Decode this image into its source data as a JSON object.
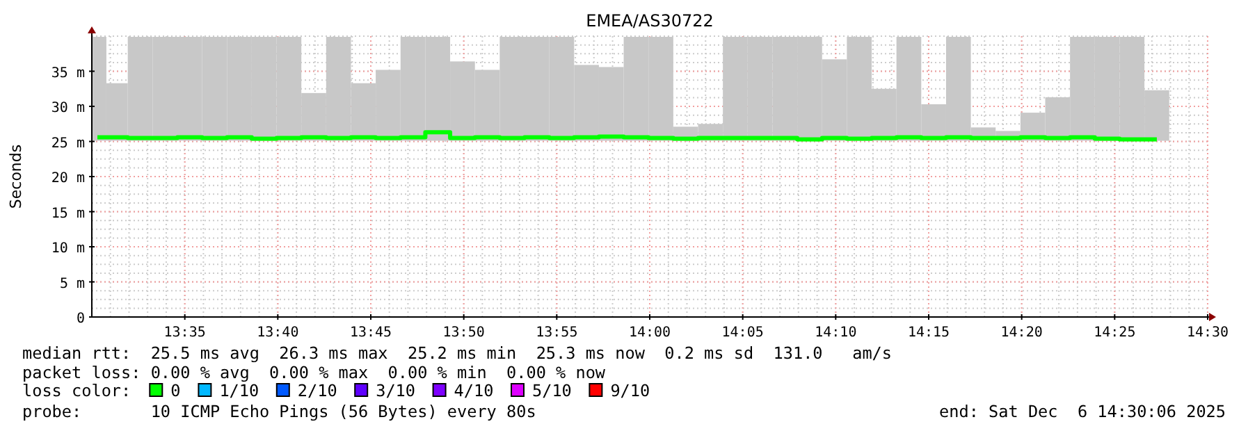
{
  "chart_data": {
    "type": "bar",
    "title": "EMEA/AS30722",
    "ylabel": "Seconds",
    "x": [
      "2025-12-06T13:30:18",
      "2025-12-06T13:31:16",
      "2025-12-06T13:32:36",
      "2025-12-06T13:33:56",
      "2025-12-06T13:35:16",
      "2025-12-06T13:36:36",
      "2025-12-06T13:37:56",
      "2025-12-06T13:39:16",
      "2025-12-06T13:40:36",
      "2025-12-06T13:41:56",
      "2025-12-06T13:43:16",
      "2025-12-06T13:44:36",
      "2025-12-06T13:45:56",
      "2025-12-06T13:47:16",
      "2025-12-06T13:48:36",
      "2025-12-06T13:49:56",
      "2025-12-06T13:51:16",
      "2025-12-06T13:52:36",
      "2025-12-06T13:53:56",
      "2025-12-06T13:55:16",
      "2025-12-06T13:56:36",
      "2025-12-06T13:57:56",
      "2025-12-06T13:59:16",
      "2025-12-06T14:00:36",
      "2025-12-06T14:01:56",
      "2025-12-06T14:03:16",
      "2025-12-06T14:04:36",
      "2025-12-06T14:05:56",
      "2025-12-06T14:07:16",
      "2025-12-06T14:08:36",
      "2025-12-06T14:09:56",
      "2025-12-06T14:11:16",
      "2025-12-06T14:12:36",
      "2025-12-06T14:13:56",
      "2025-12-06T14:15:16",
      "2025-12-06T14:16:36",
      "2025-12-06T14:17:56",
      "2025-12-06T14:19:16",
      "2025-12-06T14:20:36",
      "2025-12-06T14:21:56",
      "2025-12-06T14:23:16",
      "2025-12-06T14:24:36",
      "2025-12-06T14:25:56",
      "2025-12-06T14:27:16"
    ],
    "series": [
      {
        "color": "#c8c8c8",
        "base": [
          25.1,
          25.1,
          25.1,
          25.1,
          25.1,
          25.1,
          25.1,
          25.1,
          25.1,
          25.1,
          25.1,
          25.1,
          25.1,
          25.1,
          25.1,
          25.1,
          25.1,
          25.1,
          25.1,
          25.1,
          25.1,
          25.1,
          25.1,
          25.1,
          25.1,
          25.1,
          25.1,
          25.1,
          25.1,
          25.1,
          25.1,
          25.1,
          25.1,
          25.1,
          25.1,
          25.1,
          25.1,
          25.1,
          25.1,
          25.1,
          25.1,
          25.1,
          25.1,
          25.1
        ],
        "values": [
          14.8,
          8.2,
          14.8,
          14.8,
          14.8,
          14.8,
          14.8,
          14.8,
          14.8,
          6.8,
          14.8,
          8.2,
          10.1,
          14.8,
          14.8,
          11.3,
          10.1,
          14.8,
          14.8,
          14.8,
          10.8,
          10.5,
          14.8,
          14.8,
          2.0,
          2.4,
          14.8,
          14.8,
          14.8,
          14.8,
          11.6,
          14.8,
          7.4,
          14.8,
          5.2,
          14.8,
          1.9,
          1.4,
          4.0,
          6.2,
          14.8,
          14.8,
          14.8,
          7.2
        ]
      },
      {
        "type": "step",
        "name": "0",
        "color": "#00ff00",
        "values": [
          25.6,
          25.6,
          25.5,
          25.5,
          25.6,
          25.5,
          25.6,
          25.4,
          25.5,
          25.6,
          25.5,
          25.6,
          25.5,
          25.6,
          26.3,
          25.5,
          25.6,
          25.5,
          25.6,
          25.5,
          25.6,
          25.7,
          25.6,
          25.5,
          25.4,
          25.5,
          25.5,
          25.5,
          25.5,
          25.3,
          25.5,
          25.4,
          25.5,
          25.6,
          25.5,
          25.6,
          25.5,
          25.5,
          25.6,
          25.5,
          25.6,
          25.4,
          25.3,
          25.3
        ]
      },
      {
        "type": "step",
        "name": "1/10",
        "color": "#00b8ff",
        "values": [
          null,
          null,
          null,
          null,
          null,
          null,
          null,
          null,
          null,
          null,
          null,
          null,
          null,
          null,
          null,
          null,
          null,
          null,
          null,
          null,
          null,
          null,
          null,
          null,
          null,
          null,
          null,
          null,
          null,
          null,
          null,
          null,
          null,
          null,
          null,
          null,
          null,
          null,
          null,
          null,
          null,
          null,
          null,
          null
        ]
      },
      {
        "type": "step",
        "name": "2/10",
        "color": "#0059ff",
        "values": [
          null,
          null,
          null,
          null,
          null,
          null,
          null,
          null,
          null,
          null,
          null,
          null,
          null,
          null,
          null,
          null,
          null,
          null,
          null,
          null,
          null,
          null,
          null,
          null,
          null,
          null,
          null,
          null,
          null,
          null,
          null,
          null,
          null,
          null,
          null,
          null,
          null,
          null,
          null,
          null,
          null,
          null,
          null,
          null
        ]
      },
      {
        "type": "step",
        "name": "3/10",
        "color": "#5e00ff",
        "values": [
          null,
          null,
          null,
          null,
          null,
          null,
          null,
          null,
          null,
          null,
          null,
          null,
          null,
          null,
          null,
          null,
          null,
          null,
          null,
          null,
          null,
          null,
          null,
          null,
          null,
          null,
          null,
          null,
          null,
          null,
          null,
          null,
          null,
          null,
          null,
          null,
          null,
          null,
          null,
          null,
          null,
          null,
          null,
          null
        ]
      },
      {
        "type": "step",
        "name": "4/10",
        "color": "#7e00ff",
        "values": [
          null,
          null,
          null,
          null,
          null,
          null,
          null,
          null,
          null,
          null,
          null,
          null,
          null,
          null,
          null,
          null,
          null,
          null,
          null,
          null,
          null,
          null,
          null,
          null,
          null,
          null,
          null,
          null,
          null,
          null,
          null,
          null,
          null,
          null,
          null,
          null,
          null,
          null,
          null,
          null,
          null,
          null,
          null,
          null
        ]
      },
      {
        "type": "step",
        "name": "5/10",
        "color": "#dd00ff",
        "values": [
          null,
          null,
          null,
          null,
          null,
          null,
          null,
          null,
          null,
          null,
          null,
          null,
          null,
          null,
          null,
          null,
          null,
          null,
          null,
          null,
          null,
          null,
          null,
          null,
          null,
          null,
          null,
          null,
          null,
          null,
          null,
          null,
          null,
          null,
          null,
          null,
          null,
          null,
          null,
          null,
          null,
          null,
          null,
          null
        ]
      },
      {
        "type": "step",
        "name": "9/10",
        "color": "#ff0000",
        "values": [
          null,
          null,
          null,
          null,
          null,
          null,
          null,
          null,
          null,
          null,
          null,
          null,
          null,
          null,
          null,
          null,
          null,
          null,
          null,
          null,
          null,
          null,
          null,
          null,
          null,
          null,
          null,
          null,
          null,
          null,
          null,
          null,
          null,
          null,
          null,
          null,
          null,
          null,
          null,
          null,
          null,
          null,
          null,
          null
        ]
      }
    ],
    "xlim": [
      "2025-12-06T13:30",
      "2025-12-06T14:30"
    ],
    "xticks": [
      {
        "value": "2025-12-06T13:35",
        "label": "13:35"
      },
      {
        "value": "2025-12-06T13:40",
        "label": "13:40"
      },
      {
        "value": "2025-12-06T13:45",
        "label": "13:45"
      },
      {
        "value": "2025-12-06T13:50",
        "label": "13:50"
      },
      {
        "value": "2025-12-06T13:55",
        "label": "13:55"
      },
      {
        "value": "2025-12-06T14:00",
        "label": "14:00"
      },
      {
        "value": "2025-12-06T14:05",
        "label": "14:05"
      },
      {
        "value": "2025-12-06T14:10",
        "label": "14:10"
      },
      {
        "value": "2025-12-06T14:15",
        "label": "14:15"
      },
      {
        "value": "2025-12-06T14:20",
        "label": "14:20"
      },
      {
        "value": "2025-12-06T14:25",
        "label": "14:25"
      },
      {
        "value": "2025-12-06T14:30",
        "label": "14:30"
      }
    ],
    "ylim": [
      0,
      40
    ],
    "yticks": [
      0,
      {
        "value": 5,
        "label": "5 m"
      },
      {
        "value": 10,
        "label": "10 m"
      },
      {
        "value": 15,
        "label": "15 m"
      },
      {
        "value": 20,
        "label": "20 m"
      },
      {
        "value": 25,
        "label": "25 m"
      },
      {
        "value": 30,
        "label": "30 m"
      },
      {
        "value": 35,
        "label": "35 m"
      }
    ],
    "grid": true,
    "legend": "bottom",
    "legend_title": "loss color:",
    "annotations": [
      "median rtt:  25.5 ms avg  26.3 ms max  25.2 ms min  25.3 ms now  0.2 ms sd  131.0   am/s",
      "packet loss: 0.00 % avg  0.00 % max  0.00 % min  0.00 % now",
      "probe:       10 ICMP Echo Pings (56 Bytes) every 80s",
      "end: Sat Dec  6 14:30:06 2025"
    ]
  }
}
